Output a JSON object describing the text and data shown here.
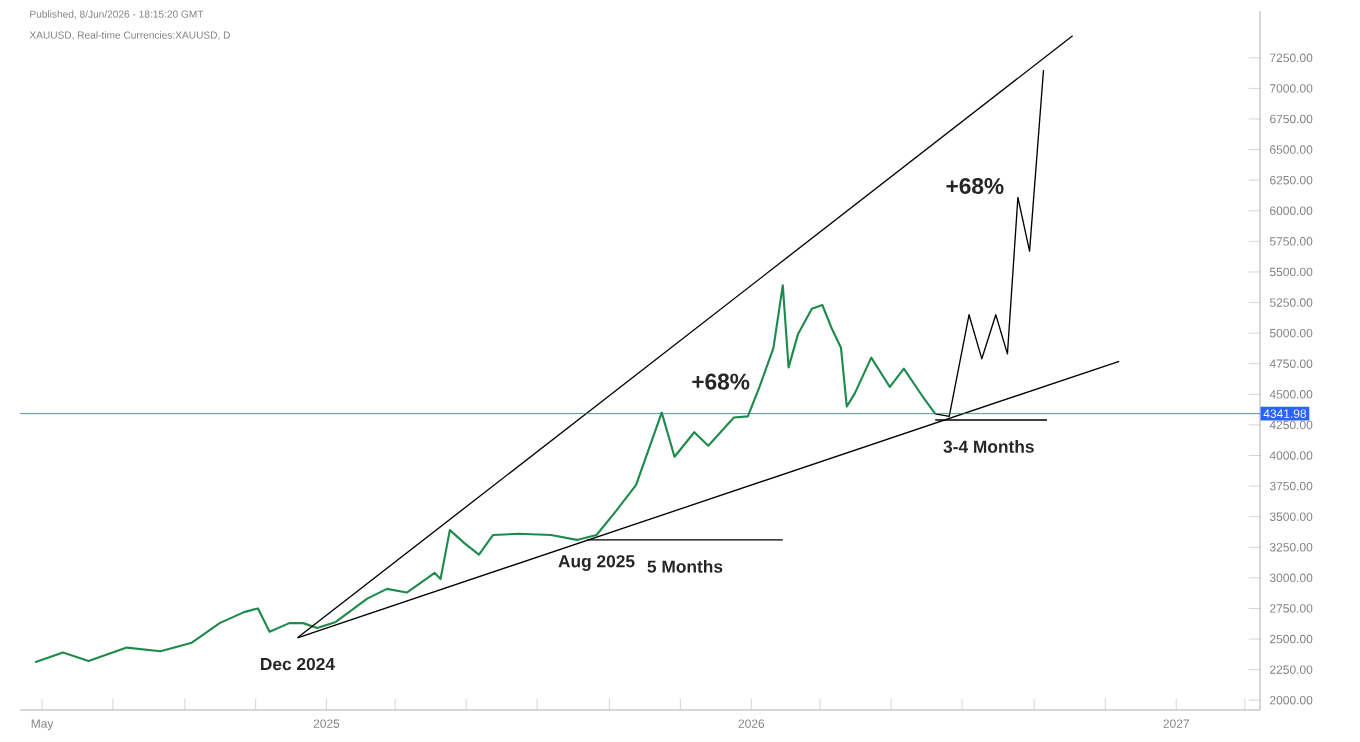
{
  "chart_data": {
    "type": "line",
    "title": "XAUUSD, Real-time Currencies:XAUUSD, D",
    "subtitle": "Published, 8/Jun/2026 - 18:15:20 GMT",
    "xlim": [
      "2024-04-12",
      "2027-03-14"
    ],
    "ylim": [
      1920,
      7630
    ],
    "xticks": [
      {
        "value": "2024-05-01",
        "label": "May"
      },
      {
        "value": "2024-07-01",
        "label": null
      },
      {
        "value": "2024-09-01",
        "label": null
      },
      {
        "value": "2024-11-01",
        "label": null
      },
      {
        "value": "2025-01-01",
        "label": "2025"
      },
      {
        "value": "2025-03-01",
        "label": null
      },
      {
        "value": "2025-05-01",
        "label": null
      },
      {
        "value": "2025-07-01",
        "label": null
      },
      {
        "value": "2025-09-01",
        "label": null
      },
      {
        "value": "2025-11-01",
        "label": null
      },
      {
        "value": "2026-01-01",
        "label": "2026"
      },
      {
        "value": "2026-03-01",
        "label": null
      },
      {
        "value": "2026-05-01",
        "label": null
      },
      {
        "value": "2026-07-01",
        "label": null
      },
      {
        "value": "2026-09-01",
        "label": null
      },
      {
        "value": "2026-11-01",
        "label": null
      },
      {
        "value": "2027-01-01",
        "label": "2027"
      },
      {
        "value": "2027-03-01",
        "label": null
      }
    ],
    "yticks": [
      {
        "value": 2000,
        "label": "2000.00"
      },
      {
        "value": 2250,
        "label": "2250.00"
      },
      {
        "value": 2500,
        "label": "2500.00"
      },
      {
        "value": 2750,
        "label": "2750.00"
      },
      {
        "value": 3000,
        "label": "3000.00"
      },
      {
        "value": 3250,
        "label": "3250.00"
      },
      {
        "value": 3500,
        "label": "3500.00"
      },
      {
        "value": 3750,
        "label": "3750.00"
      },
      {
        "value": 4000,
        "label": "4000.00"
      },
      {
        "value": 4250,
        "label": "4250.00"
      },
      {
        "value": 4500,
        "label": "4500.00"
      },
      {
        "value": 4750,
        "label": "4750.00"
      },
      {
        "value": 5000,
        "label": "5000.00"
      },
      {
        "value": 5250,
        "label": "5250.00"
      },
      {
        "value": 5500,
        "label": "5500.00"
      },
      {
        "value": 5750,
        "label": "5750.00"
      },
      {
        "value": 6000,
        "label": "6000.00"
      },
      {
        "value": 6250,
        "label": "6250.00"
      },
      {
        "value": 6500,
        "label": "6500.00"
      },
      {
        "value": 6750,
        "label": "6750.00"
      },
      {
        "value": 7000,
        "label": "7000.00"
      },
      {
        "value": 7250,
        "label": "7250.00"
      }
    ],
    "series": [
      {
        "color": "#1e8a4c",
        "x": [
          "2024-04-25",
          "2024-05-19",
          "2024-06-10",
          "2024-07-13",
          "2024-08-11",
          "2024-09-07",
          "2024-10-01",
          "2024-10-22",
          "2024-11-03",
          "2024-11-13",
          "2024-11-30",
          "2024-12-12",
          "2024-12-24",
          "2025-01-09",
          "2025-02-05",
          "2025-02-22",
          "2025-03-11",
          "2025-04-04",
          "2025-04-09",
          "2025-04-17",
          "2025-04-30",
          "2025-05-12",
          "2025-05-24",
          "2025-06-15",
          "2025-07-13",
          "2025-08-04",
          "2025-08-21",
          "2025-09-07",
          "2025-09-24",
          "2025-10-16",
          "2025-10-27",
          "2025-11-13",
          "2025-11-25",
          "2025-12-17",
          "2025-12-29",
          "2026-01-08",
          "2026-01-20",
          "2026-01-28",
          "2026-02-02",
          "2026-02-10",
          "2026-02-22",
          "2026-03-03",
          "2026-03-11",
          "2026-03-19",
          "2026-03-24",
          "2026-03-31",
          "2026-04-14",
          "2026-04-30",
          "2026-05-12",
          "2026-05-29",
          "2026-06-08"
        ],
        "values": [
          2310,
          2390,
          2320,
          2430,
          2400,
          2470,
          2630,
          2720,
          2750,
          2560,
          2630,
          2630,
          2590,
          2640,
          2830,
          2910,
          2880,
          3040,
          2990,
          3390,
          3280,
          3190,
          3350,
          3360,
          3350,
          3310,
          3350,
          3550,
          3760,
          4350,
          3990,
          4190,
          4080,
          4310,
          4320,
          4560,
          4880,
          5390,
          4720,
          4990,
          5200,
          5230,
          5040,
          4880,
          4400,
          4510,
          4800,
          4560,
          4710,
          4470,
          4340
        ]
      },
      {
        "color": "#000000",
        "x": [
          "2026-06-08",
          "2026-06-20",
          "2026-07-07",
          "2026-07-18",
          "2026-07-30",
          "2026-08-09",
          "2026-08-18",
          "2026-08-28",
          "2026-09-09"
        ],
        "values": [
          4340,
          4320,
          5150,
          4790,
          5150,
          4830,
          6110,
          5670,
          7150
        ]
      },
      {
        "color": "#000000",
        "x": [
          "2024-12-07",
          "2026-10-04"
        ],
        "values": [
          2510,
          7430
        ]
      },
      {
        "color": "#000000",
        "x": [
          "2024-12-07",
          "2026-11-13"
        ],
        "values": [
          2510,
          4770
        ]
      },
      {
        "color": "#000000",
        "x": [
          "2025-08-13",
          "2026-01-28"
        ],
        "values": [
          3310,
          3310
        ]
      },
      {
        "color": "#000000",
        "x": [
          "2026-06-08",
          "2026-09-12"
        ],
        "values": [
          4290,
          4290
        ]
      }
    ],
    "ref_lines": [
      {
        "axis": "y",
        "value": 4341.98,
        "label": "4341.98",
        "color": "#2962ff"
      }
    ],
    "annotations": [
      "+68%",
      "+68%",
      {
        "text": "5 Months",
        "x": "2025-11-05",
        "y": 3310
      },
      {
        "text": "3-4 Months",
        "x": "2026-07-24",
        "y": 4290
      },
      {
        "text": "Dec 2024",
        "x": "2024-12-07",
        "y": 2510
      },
      {
        "text": "Aug 2025",
        "x": "2025-08-21",
        "y": 3350
      }
    ],
    "grid": false
  }
}
